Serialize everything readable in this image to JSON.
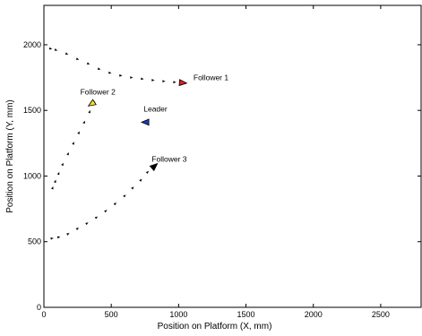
{
  "chart_data": {
    "type": "scatter",
    "title": "",
    "xlabel": "Position on Platform (X, mm)",
    "ylabel": "Position on Platform (Y, mm)",
    "xlim": [
      0,
      2800
    ],
    "ylim": [
      0,
      2300
    ],
    "xticks": [
      "0",
      "500",
      "1000",
      "1500",
      "2000",
      "2500"
    ],
    "xtick_values": [
      0,
      500,
      1000,
      1500,
      2000,
      2500
    ],
    "yticks": [
      "0",
      "500",
      "1000",
      "1500",
      "2000"
    ],
    "ytick_values": [
      0,
      500,
      1000,
      1500,
      2000
    ],
    "grid": false,
    "series": [
      {
        "name": "Follower 1",
        "marker_color": "#dd2222",
        "trail_color": "#000000",
        "x": [
          50,
          90,
          170,
          250,
          330,
          410,
          490,
          570,
          650,
          730,
          810,
          890,
          970
        ],
        "y": [
          1970,
          1960,
          1930,
          1890,
          1855,
          1815,
          1785,
          1765,
          1750,
          1740,
          1730,
          1722,
          1715
        ],
        "final": {
          "x": 1030,
          "y": 1710
        }
      },
      {
        "name": "Follower 2",
        "marker_color": "#f0e020",
        "trail_color": "#000000",
        "x": [
          65,
          85,
          110,
          140,
          180,
          220,
          260,
          300,
          340,
          370
        ],
        "y": [
          910,
          960,
          1020,
          1090,
          1170,
          1250,
          1330,
          1410,
          1490,
          1560
        ],
        "final": {
          "x": 355,
          "y": 1550
        }
      },
      {
        "name": "Leader",
        "marker_color": "#1a3fb5",
        "trail_color": "#000000",
        "x": [],
        "y": [],
        "final": {
          "x": 755,
          "y": 1410
        }
      },
      {
        "name": "Follower 3",
        "marker_color": "#000000",
        "trail_color": "#000000",
        "x": [
          60,
          110,
          180,
          250,
          320,
          390,
          460,
          530,
          600,
          660,
          720,
          770
        ],
        "y": [
          525,
          535,
          560,
          600,
          640,
          685,
          735,
          790,
          850,
          910,
          970,
          1030
        ],
        "final": {
          "x": 820,
          "y": 1075
        }
      }
    ],
    "annotations": [
      {
        "text": "Follower 1",
        "x": 1110,
        "y": 1730
      },
      {
        "text": "Follower 2",
        "x": 270,
        "y": 1620
      },
      {
        "text": "Leader",
        "x": 740,
        "y": 1490
      },
      {
        "text": "Follower 3",
        "x": 800,
        "y": 1110
      }
    ]
  }
}
